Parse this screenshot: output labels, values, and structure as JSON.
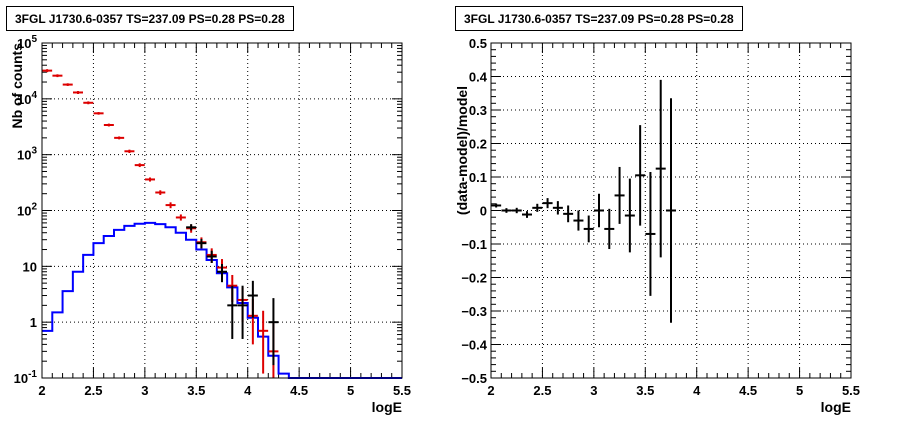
{
  "chart_data": [
    {
      "type": "histogram",
      "title": "3FGL J1730.6-0357 TS=237.09 PS=0.28 PS=0.28",
      "xlabel": "logE",
      "ylabel": "Nb of counts",
      "xlim": [
        2,
        5.5
      ],
      "ylim": [
        0.1,
        100000
      ],
      "yscale": "log",
      "grid": true,
      "x_ticks": [
        "2",
        "2.5",
        "3",
        "3.5",
        "4",
        "4.5",
        "5",
        "5.5"
      ],
      "y_ticks": [
        "10^-1",
        "1",
        "10",
        "10^2",
        "10^3",
        "10^4",
        "10^5"
      ],
      "bin_edges": [
        2.0,
        2.1,
        2.2,
        2.3,
        2.4,
        2.5,
        2.6,
        2.7,
        2.8,
        2.9,
        3.0,
        3.1,
        3.2,
        3.3,
        3.4,
        3.5,
        3.6,
        3.7,
        3.8,
        3.9,
        4.0,
        4.1,
        4.2,
        4.3,
        4.4,
        4.5,
        4.6,
        4.7,
        4.8,
        4.9,
        5.0,
        5.1,
        5.2,
        5.3,
        5.4,
        5.5
      ],
      "series": [
        {
          "kind": "step",
          "color": "#0000ff",
          "values": [
            0.7,
            1.5,
            3.6,
            8.0,
            16,
            26,
            35,
            45,
            53,
            58,
            60,
            57,
            50,
            40,
            30,
            20,
            13,
            7.5,
            4.2,
            2.2,
            1.2,
            0.55,
            0.25,
            0.12,
            0.1,
            0.1,
            0.1,
            0.1,
            0.1,
            0.1,
            0.1,
            0.1,
            0.1,
            0.1,
            0.1
          ]
        },
        {
          "kind": "model-errorbars",
          "color": "#dd0000",
          "x": [
            2.05,
            2.15,
            2.25,
            2.35,
            2.45,
            2.55,
            2.65,
            2.75,
            2.85,
            2.95,
            3.05,
            3.15,
            3.25,
            3.35,
            3.45,
            3.55,
            3.65,
            3.75,
            3.85,
            3.95,
            4.05,
            4.15,
            4.25
          ],
          "y": [
            32000,
            26000,
            18000,
            13000,
            8500,
            5500,
            3400,
            2000,
            1150,
            650,
            360,
            210,
            125,
            75,
            48,
            27,
            16,
            9.5,
            4.5,
            2.5,
            1.3,
            0.7,
            0.3
          ],
          "y_low": [
            30000,
            24500,
            17000,
            12200,
            8000,
            5200,
            3200,
            1880,
            1070,
            600,
            330,
            190,
            110,
            66,
            40,
            21,
            11.5,
            6.0,
            2.3,
            1.0,
            0.4,
            0.12,
            0.1
          ],
          "y_high": [
            34000,
            27500,
            19000,
            13800,
            9000,
            5800,
            3600,
            2120,
            1230,
            700,
            390,
            230,
            140,
            85,
            56,
            33,
            21,
            13.5,
            7.0,
            4.2,
            2.6,
            1.6,
            1.0
          ]
        },
        {
          "kind": "data-errorbars",
          "color": "#000000",
          "x": [
            3.45,
            3.55,
            3.65,
            3.75,
            3.85,
            3.95,
            4.05,
            4.25
          ],
          "y": [
            50,
            26,
            15,
            8,
            2,
            2,
            3,
            1
          ],
          "y_low": [
            44,
            21,
            11.5,
            5.2,
            0.5,
            0.5,
            1.2,
            0.17
          ],
          "y_high": [
            57,
            31,
            19,
            11,
            4.5,
            4.5,
            5.5,
            2.7
          ]
        }
      ]
    },
    {
      "type": "scatter",
      "title": "3FGL J1730.6-0357 TS=237.09 PS=0.28 PS=0.28",
      "xlabel": "logE",
      "ylabel": "(data-model)/model",
      "xlim": [
        2,
        5.5
      ],
      "ylim": [
        -0.5,
        0.5
      ],
      "grid": true,
      "x_ticks": [
        "2",
        "2.5",
        "3",
        "3.5",
        "4",
        "4.5",
        "5",
        "5.5"
      ],
      "y_ticks": [
        "−0.5",
        "−0.4",
        "−0.3",
        "−0.2",
        "−0.1",
        "0",
        "0.1",
        "0.2",
        "0.3",
        "0.4",
        "0.5"
      ],
      "series": [
        {
          "color": "#000000",
          "x": [
            2.05,
            2.15,
            2.25,
            2.35,
            2.45,
            2.55,
            2.65,
            2.75,
            2.85,
            2.95,
            3.05,
            3.15,
            3.25,
            3.35,
            3.45,
            3.55,
            3.65,
            3.75
          ],
          "y": [
            0.015,
            0.0,
            0.0,
            -0.012,
            0.008,
            0.022,
            0.008,
            -0.01,
            -0.03,
            -0.055,
            0.0,
            -0.055,
            0.045,
            -0.015,
            0.105,
            -0.07,
            0.125,
            0.0
          ],
          "y_err": [
            0.006,
            0.007,
            0.008,
            0.01,
            0.012,
            0.015,
            0.02,
            0.025,
            0.03,
            0.04,
            0.05,
            0.06,
            0.085,
            0.11,
            0.15,
            0.185,
            0.265,
            0.335
          ]
        }
      ]
    }
  ]
}
